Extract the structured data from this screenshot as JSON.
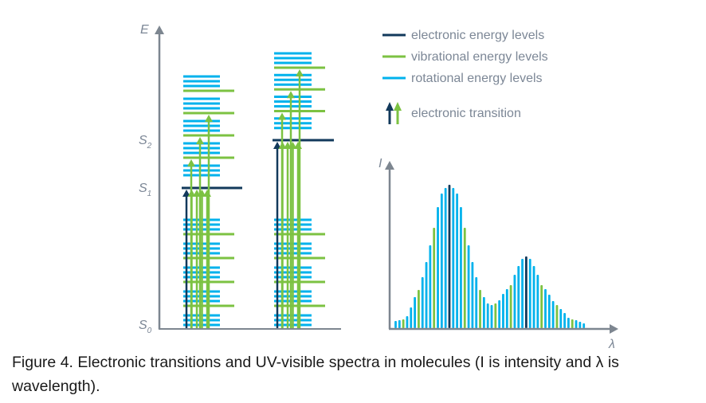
{
  "colors": {
    "electronic": "#12395b",
    "vibrational": "#7cc242",
    "rotational": "#00b2ec",
    "axis": "#7d8690",
    "label": "#7c8796"
  },
  "energy_diagram": {
    "y_axis_label": "E",
    "state_labels": {
      "s0": {
        "main": "S",
        "sub": "0"
      },
      "s1": {
        "main": "S",
        "sub": "1"
      },
      "s2": {
        "main": "S",
        "sub": "2"
      }
    },
    "columns": [
      {
        "name": "S0-to-S1",
        "excited_state": "S1",
        "vibrational_levels_ground": 4,
        "vibrational_levels_excited": 4,
        "rotational_per_vibrational": 3,
        "transitions_to_excited_level0": 5,
        "transitions_to_higher_vibrational": 3
      },
      {
        "name": "S0-to-S2",
        "excited_state": "S2",
        "vibrational_levels_ground": 4,
        "vibrational_levels_excited": 3,
        "rotational_per_vibrational": 3,
        "transitions_to_excited_level0": 5,
        "transitions_to_higher_vibrational": 3
      }
    ]
  },
  "legend": {
    "items": [
      {
        "label": "electronic energy levels",
        "type": "line",
        "color_key": "electronic"
      },
      {
        "label": "vibrational energy levels",
        "type": "line",
        "color_key": "vibrational"
      },
      {
        "label": "rotational energy levels",
        "type": "line",
        "color_key": "rotational"
      },
      {
        "label": "electronic transition",
        "type": "arrows",
        "color_key": "electronic+vibrational"
      }
    ]
  },
  "chart_data": {
    "type": "bar",
    "title": "",
    "xlabel": "λ",
    "ylabel": "I",
    "grid": false,
    "legend": "none",
    "ylim": [
      0,
      190
    ],
    "series": [
      {
        "name": "UV-visible spectrum intensity (arbitrary units)",
        "values": [
          9,
          10,
          11,
          15,
          26,
          39,
          48,
          64,
          83,
          104,
          126,
          152,
          169,
          176,
          180,
          176,
          169,
          152,
          126,
          104,
          83,
          64,
          48,
          39,
          31,
          29,
          31,
          35,
          43,
          49,
          54,
          67,
          78,
          87,
          90,
          87,
          78,
          67,
          54,
          49,
          42,
          34,
          29,
          24,
          19,
          13,
          11,
          10,
          8,
          6
        ],
        "kinds": [
          "r",
          "r",
          "v",
          "r",
          "r",
          "r",
          "v",
          "r",
          "r",
          "r",
          "v",
          "r",
          "r",
          "r",
          "e",
          "r",
          "r",
          "r",
          "v",
          "r",
          "r",
          "r",
          "v",
          "r",
          "r",
          "r",
          "v",
          "r",
          "r",
          "r",
          "v",
          "r",
          "r",
          "r",
          "e",
          "r",
          "r",
          "r",
          "v",
          "r",
          "r",
          "r",
          "v",
          "r",
          "r",
          "r",
          "v",
          "r",
          "r",
          "r"
        ]
      }
    ],
    "kind_legend": {
      "e": "electronic",
      "v": "vibrational",
      "r": "rotational"
    }
  },
  "caption": {
    "text": "Figure 4. Electronic transitions and UV-visible spectra in molecules (I is intensity and λ is wavelength)."
  }
}
